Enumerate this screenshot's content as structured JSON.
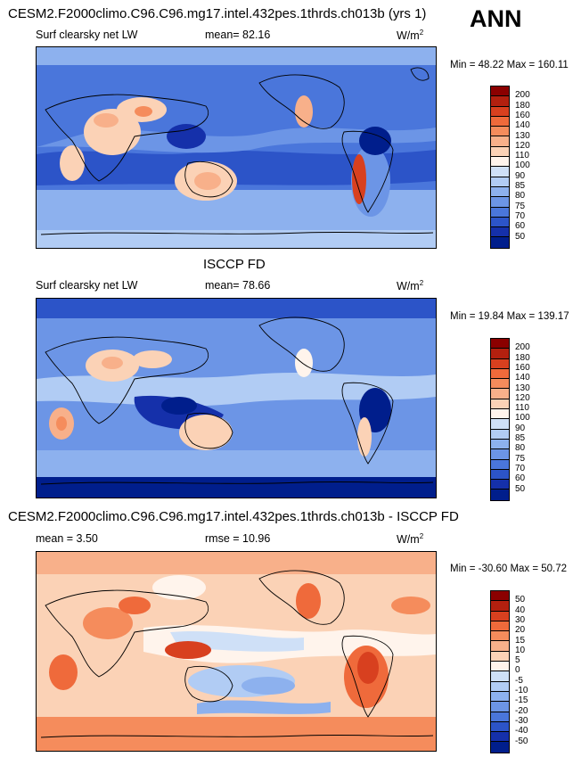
{
  "season": "ANN",
  "panels": [
    {
      "title": "CESM2.F2000climo.C96.C96.mg17.intel.432pes.1thrds.ch013b (yrs 1)",
      "left_label": "Surf clearsky net LW",
      "stat_label": "mean=  82.16",
      "units_base": "W/m",
      "units_exp": "2",
      "minmax": "Min =  48.22 Max = 160.11",
      "levels": [
        "200",
        "180",
        "160",
        "140",
        "130",
        "120",
        "110",
        "100",
        "90",
        "85",
        "80",
        "75",
        "70",
        "60",
        "50"
      ],
      "colors": [
        "#8b0000",
        "#b3200f",
        "#d8401f",
        "#ef6a3b",
        "#f58c5c",
        "#f8b08a",
        "#fbd2b6",
        "#fff4ec",
        "#cfe0f7",
        "#b1ccf4",
        "#8db1ee",
        "#6c95e6",
        "#4a76db",
        "#2c54c8",
        "#1530aa",
        "#001e8c"
      ]
    },
    {
      "title": "ISCCP FD",
      "left_label": "Surf clearsky net LW",
      "stat_label": "mean=  78.66",
      "units_base": "W/m",
      "units_exp": "2",
      "minmax": "Min =  19.84 Max = 139.17",
      "levels": [
        "200",
        "180",
        "160",
        "140",
        "130",
        "120",
        "110",
        "100",
        "90",
        "85",
        "80",
        "75",
        "70",
        "60",
        "50"
      ],
      "colors": [
        "#8b0000",
        "#b3200f",
        "#d8401f",
        "#ef6a3b",
        "#f58c5c",
        "#f8b08a",
        "#fbd2b6",
        "#fff4ec",
        "#cfe0f7",
        "#b1ccf4",
        "#8db1ee",
        "#6c95e6",
        "#4a76db",
        "#2c54c8",
        "#1530aa",
        "#001e8c"
      ]
    },
    {
      "title": "CESM2.F2000climo.C96.C96.mg17.intel.432pes.1thrds.ch013b - ISCCP FD",
      "left_label": "mean =   3.50",
      "stat_label": "rmse =  10.96",
      "units_base": "W/m",
      "units_exp": "2",
      "minmax": "Min = -30.60 Max =  50.72",
      "levels": [
        "50",
        "40",
        "30",
        "20",
        "15",
        "10",
        "5",
        "0",
        "-5",
        "-10",
        "-15",
        "-20",
        "-30",
        "-40",
        "-50"
      ],
      "colors": [
        "#8b0000",
        "#b3200f",
        "#d8401f",
        "#ef6a3b",
        "#f58c5c",
        "#f8b08a",
        "#fbd2b6",
        "#fff4ec",
        "#cfe0f7",
        "#b1ccf4",
        "#8db1ee",
        "#6c95e6",
        "#4a76db",
        "#2c54c8",
        "#1530aa",
        "#001e8c"
      ]
    }
  ]
}
